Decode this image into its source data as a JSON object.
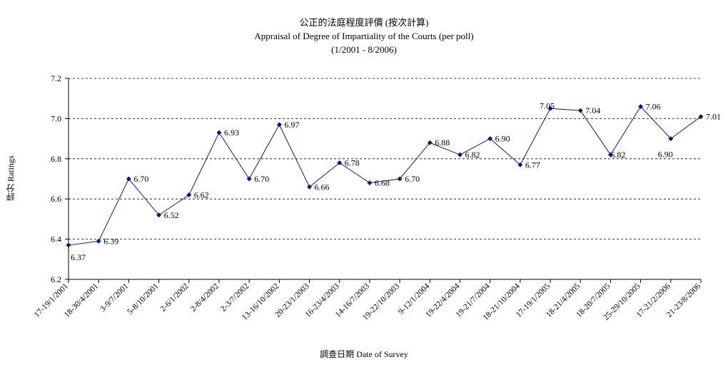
{
  "chart_data": {
    "type": "line",
    "title": "公正的法庭程度評價 (按次計算)",
    "subtitle": "Appraisal of Degree of Impartiality of the Courts (per poll)",
    "period": "(1/2001 - 8/2006)",
    "xlabel": "調查日期 Date of Survey",
    "ylabel": "評分 Ratings",
    "ylim": [
      6.2,
      7.2
    ],
    "yticks": [
      "6.2",
      "6.4",
      "6.6",
      "6.8",
      "7.0",
      "7.2"
    ],
    "grid": true,
    "categories": [
      "17-19/1/2001",
      "18-30/4/2001",
      "3-9/7/2001",
      "5-8/10/2001",
      "2-6/1/2002",
      "2-8/4/2002",
      "2-3/7/2002",
      "13-16/10/2002",
      "20-23/1/2003",
      "16-23/4/2003",
      "14-16/7/2003",
      "19-22/10/2003",
      "9-12/1/2004",
      "19-22/4/2004",
      "19-21/7/2004",
      "18-21/10/2004",
      "17-19/1/2005",
      "18-21/4/2005",
      "18-20/7/2005",
      "25-29/10/2005",
      "17-21/2/2006",
      "21-23/8/2006"
    ],
    "series": [
      {
        "values": [
          6.37,
          6.39,
          6.7,
          6.52,
          6.62,
          6.93,
          6.7,
          6.97,
          6.66,
          6.78,
          6.68,
          6.7,
          6.88,
          6.82,
          6.9,
          6.77,
          7.05,
          7.04,
          6.82,
          7.06,
          6.9,
          7.01
        ],
        "data_labels": [
          "6.37",
          "6.39",
          "6.70",
          "6.52",
          "6.62",
          "6.93",
          "6.70",
          "6.97",
          "6.66",
          "6.78",
          "6.68",
          "6.70",
          "6.88",
          "6.82",
          "6.90",
          "6.77",
          "7.05",
          "7.04",
          "6.82",
          "7.06",
          "6.90",
          "7.01"
        ]
      }
    ],
    "colors": {
      "line": "#0a1a78",
      "marker": "#0a1a78",
      "grid": "#000000"
    }
  }
}
